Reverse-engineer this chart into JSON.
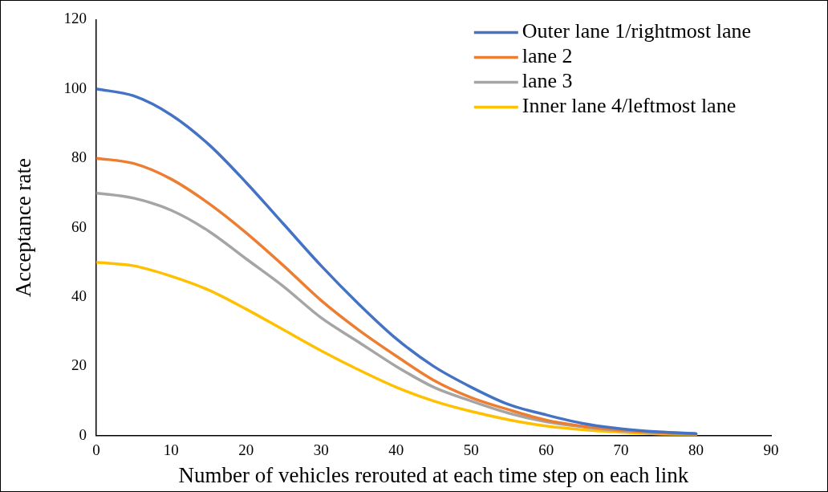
{
  "chart_data": {
    "type": "line",
    "xlabel": "Number of vehicles rerouted at each time step on each link",
    "ylabel": "Acceptance rate",
    "x": [
      0,
      5,
      10,
      15,
      20,
      25,
      30,
      35,
      40,
      45,
      50,
      55,
      60,
      65,
      70,
      75,
      80
    ],
    "xlim": [
      0,
      90
    ],
    "xticks": [
      0,
      10,
      20,
      30,
      40,
      50,
      60,
      70,
      80,
      90
    ],
    "ylim": [
      0,
      120
    ],
    "yticks": [
      0,
      20,
      40,
      60,
      80,
      100,
      120
    ],
    "grid": false,
    "legend": "top right",
    "marker": "none",
    "line_style": "solid",
    "series": [
      {
        "name": "Outer lane 1/rightmost lane",
        "color": "#4472c4",
        "values": [
          100,
          98,
          92.5,
          84,
          73,
          61,
          49,
          38,
          28,
          20,
          14,
          9,
          6,
          3.5,
          2,
          1.1,
          0.6
        ]
      },
      {
        "name": "lane 2",
        "color": "#ed7d31",
        "values": [
          80,
          78.5,
          74,
          67,
          58.5,
          49,
          39,
          30.5,
          23,
          16,
          11,
          7.5,
          4.5,
          2.7,
          1.6,
          0.9,
          0.5
        ]
      },
      {
        "name": "lane 3",
        "color": "#a5a5a5",
        "values": [
          70,
          68.5,
          65,
          59,
          51,
          43,
          34,
          27,
          20,
          14,
          10,
          6.5,
          4,
          2.5,
          1.4,
          0.8,
          0.4
        ]
      },
      {
        "name": "Inner lane 4/leftmost lane",
        "color": "#ffc000",
        "values": [
          50,
          49,
          46,
          42,
          36.5,
          30.5,
          24.5,
          19,
          14,
          10,
          7,
          4.6,
          2.8,
          1.7,
          1,
          0.5,
          0.3
        ]
      }
    ]
  }
}
